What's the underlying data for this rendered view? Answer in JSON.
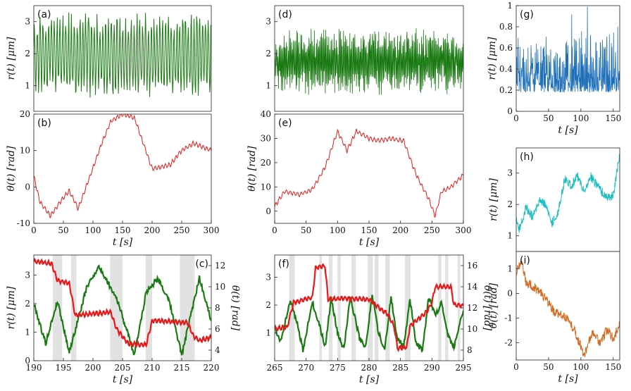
{
  "figure": {
    "colors": {
      "green": "#1a7a12",
      "red": "#e8181a",
      "blue": "#1f70b8",
      "cyan": "#1bbec2",
      "orange": "#d2691e",
      "shade": "#e2e2e2"
    }
  },
  "chart_data": [
    {
      "id": "a",
      "panel_label": "(a)",
      "type": "line",
      "series": [
        {
          "name": "r(t)",
          "color": "green",
          "style": "oscillating",
          "points": 340
        }
      ],
      "xlim": [
        0,
        300
      ],
      "ylim": [
        0.2,
        3.5
      ],
      "yticks": [
        1,
        2,
        3
      ],
      "xticks": [],
      "ylabel": "r(t) [μm]",
      "xlabel": ""
    },
    {
      "id": "b",
      "panel_label": "(b)",
      "type": "line",
      "series": [
        {
          "name": "θ(t)",
          "color": "red",
          "style": "steps",
          "anchors": [
            [
              0,
              3
            ],
            [
              10,
              -4
            ],
            [
              28,
              -8
            ],
            [
              45,
              -4
            ],
            [
              60,
              -1
            ],
            [
              75,
              -6
            ],
            [
              95,
              3
            ],
            [
              115,
              12
            ],
            [
              130,
              18
            ],
            [
              150,
              20
            ],
            [
              170,
              19
            ],
            [
              185,
              12
            ],
            [
              200,
              5
            ],
            [
              230,
              6
            ],
            [
              250,
              10
            ],
            [
              270,
              12
            ],
            [
              300,
              10
            ]
          ]
        }
      ],
      "xlim": [
        0,
        300
      ],
      "ylim": [
        -10,
        20
      ],
      "yticks": [
        -10,
        0,
        10,
        20
      ],
      "xticks": [
        0,
        50,
        100,
        150,
        200,
        250,
        300
      ],
      "ylabel": "θ(t) [rad]",
      "xlabel": "t [s]"
    },
    {
      "id": "c",
      "panel_label": "(c)",
      "type": "line",
      "series": [
        {
          "name": "r(t)",
          "color": "green",
          "style": "cycles",
          "axis": "left",
          "anchors": [
            [
              190,
              2.0
            ],
            [
              192,
              0.6
            ],
            [
              194,
              2.1
            ],
            [
              196,
              0.3
            ],
            [
              199,
              2.6
            ],
            [
              201,
              3.3
            ],
            [
              204,
              2.2
            ],
            [
              207,
              0.2
            ],
            [
              209,
              2.4
            ],
            [
              211,
              2.9
            ],
            [
              213,
              2.0
            ],
            [
              215,
              0.2
            ],
            [
              218,
              2.9
            ],
            [
              220,
              1.4
            ]
          ]
        },
        {
          "name": "θ(t)",
          "color": "red",
          "style": "steps",
          "axis": "right",
          "anchors": [
            [
              190,
              12.4
            ],
            [
              193,
              12.2
            ],
            [
              194,
              10.6
            ],
            [
              196,
              10.3
            ],
            [
              197,
              7.3
            ],
            [
              203,
              7.6
            ],
            [
              204,
              6.0
            ],
            [
              206,
              4.6
            ],
            [
              209,
              4.5
            ],
            [
              210,
              6.8
            ],
            [
              216,
              6.6
            ],
            [
              217,
              5.3
            ],
            [
              218,
              4.9
            ],
            [
              220,
              5.2
            ]
          ]
        }
      ],
      "shaded": [
        [
          193.2,
          194.8
        ],
        [
          196.3,
          197.2
        ],
        [
          202.9,
          205.0
        ],
        [
          208.9,
          210.0
        ],
        [
          214.7,
          217.2
        ]
      ],
      "xlim": [
        190,
        220
      ],
      "ylim": [
        0,
        3.7
      ],
      "yticks": [
        0,
        1,
        2,
        3
      ],
      "y2lim": [
        3,
        13
      ],
      "y2ticks": [
        4,
        6,
        8,
        10,
        12
      ],
      "xticks": [
        190,
        195,
        200,
        205,
        210,
        215,
        220
      ],
      "ylabel": "r(t) [μm]",
      "y2label": "θ(t) [rad]",
      "xlabel": "t [s]"
    },
    {
      "id": "d",
      "panel_label": "(d)",
      "type": "line",
      "series": [
        {
          "name": "r(t)",
          "color": "green",
          "style": "fast",
          "points": 600
        }
      ],
      "xlim": [
        0,
        300
      ],
      "ylim": [
        0.2,
        3.5
      ],
      "yticks": [
        1,
        2,
        3
      ],
      "xticks": [],
      "ylabel": "",
      "xlabel": ""
    },
    {
      "id": "e",
      "panel_label": "(e)",
      "type": "line",
      "series": [
        {
          "name": "θ(t)",
          "color": "red",
          "style": "steps",
          "anchors": [
            [
              0,
              2
            ],
            [
              15,
              8
            ],
            [
              40,
              7
            ],
            [
              60,
              9
            ],
            [
              80,
              18
            ],
            [
              100,
              33
            ],
            [
              115,
              25
            ],
            [
              130,
              33
            ],
            [
              150,
              30
            ],
            [
              165,
              29
            ],
            [
              185,
              30
            ],
            [
              205,
              29
            ],
            [
              225,
              15
            ],
            [
              245,
              5
            ],
            [
              255,
              -2
            ],
            [
              265,
              8
            ],
            [
              280,
              10
            ],
            [
              300,
              15
            ]
          ]
        }
      ],
      "xlim": [
        0,
        300
      ],
      "ylim": [
        -5,
        40
      ],
      "yticks": [
        0,
        10,
        20,
        30,
        40
      ],
      "xticks": [
        0,
        50,
        100,
        150,
        200,
        250,
        300
      ],
      "ylabel": "θ(t) [rad]",
      "xlabel": "t [s]"
    },
    {
      "id": "f",
      "panel_label": "(f)",
      "type": "line",
      "series": [
        {
          "name": "r(t)",
          "color": "green",
          "style": "cycles",
          "axis": "left",
          "anchors": [
            [
              265,
              1.2
            ],
            [
              266,
              0.7
            ],
            [
              267.5,
              2.2
            ],
            [
              268.5,
              1.4
            ],
            [
              269.5,
              0.4
            ],
            [
              271,
              2.1
            ],
            [
              272.2,
              1.2
            ],
            [
              273,
              0.5
            ],
            [
              274,
              2.2
            ],
            [
              275,
              1.0
            ],
            [
              276,
              0.4
            ],
            [
              277,
              2.3
            ],
            [
              278.5,
              0.8
            ],
            [
              279.5,
              0.5
            ],
            [
              280.5,
              2.4
            ],
            [
              281.5,
              1.0
            ],
            [
              282.5,
              0.4
            ],
            [
              283.5,
              2.3
            ],
            [
              284.5,
              0.8
            ],
            [
              285.5,
              0.5
            ],
            [
              286.5,
              2.2
            ],
            [
              287.5,
              0.6
            ],
            [
              288.5,
              0.4
            ],
            [
              289.5,
              2.3
            ],
            [
              290.5,
              1.6
            ],
            [
              291.5,
              2.1
            ],
            [
              292.5,
              1.0
            ],
            [
              293.5,
              0.5
            ],
            [
              295,
              1.8
            ]
          ]
        },
        {
          "name": "θ(t)",
          "color": "red",
          "style": "steps",
          "axis": "right",
          "anchors": [
            [
              265,
              10
            ],
            [
              267,
              10.2
            ],
            [
              268,
              12.5
            ],
            [
              271,
              13
            ],
            [
              271.5,
              15.8
            ],
            [
              273,
              16
            ],
            [
              273.5,
              12.8
            ],
            [
              276,
              12.9
            ],
            [
              280,
              12.8
            ],
            [
              281,
              12.3
            ],
            [
              282,
              11.8
            ],
            [
              283,
              11.4
            ],
            [
              284,
              10.2
            ],
            [
              284.5,
              8.2
            ],
            [
              286,
              8.3
            ],
            [
              286.5,
              10.3
            ],
            [
              289,
              11.5
            ],
            [
              290,
              12.5
            ],
            [
              290.5,
              14
            ],
            [
              293,
              14
            ],
            [
              293.5,
              12.3
            ],
            [
              295,
              12.2
            ]
          ]
        }
      ],
      "shaded": [
        [
          267.3,
          268.2
        ],
        [
          272.1,
          272.5
        ],
        [
          273.6,
          274.2
        ],
        [
          275.0,
          275.5
        ],
        [
          277.2,
          277.9
        ],
        [
          279.8,
          280.6
        ],
        [
          280.9,
          281.5
        ],
        [
          282.6,
          283.3
        ],
        [
          285.7,
          286.6
        ],
        [
          291.0,
          291.5
        ],
        [
          292.1,
          292.6
        ],
        [
          294.1,
          294.5
        ]
      ],
      "xlim": [
        265,
        295
      ],
      "ylim": [
        0,
        3.8
      ],
      "yticks": [
        1,
        2,
        3
      ],
      "y2lim": [
        7,
        17
      ],
      "y2ticks": [
        8,
        10,
        12,
        14,
        16
      ],
      "xticks": [
        265,
        270,
        275,
        280,
        285,
        290,
        295
      ],
      "ylabel": "",
      "y2label": "θ(t) [rad]",
      "xlabel": "t [s]"
    },
    {
      "id": "g",
      "panel_label": "(g)",
      "type": "line",
      "series": [
        {
          "name": "r(t)",
          "color": "blue",
          "style": "noise",
          "points": 420
        }
      ],
      "xlim": [
        0,
        160
      ],
      "ylim": [
        0,
        1
      ],
      "yticks": [
        0,
        0.2,
        0.4,
        0.6,
        0.8,
        1
      ],
      "xticks": [
        0,
        50,
        100,
        150
      ],
      "ylabel": "r(t) [μm]",
      "xlabel": "t [s]"
    },
    {
      "id": "h",
      "panel_label": "(h)",
      "type": "line",
      "series": [
        {
          "name": "r(t)",
          "color": "cyan",
          "style": "walk",
          "anchors": [
            [
              0,
              1.6
            ],
            [
              5,
              1.2
            ],
            [
              15,
              1.9
            ],
            [
              25,
              1.6
            ],
            [
              35,
              2.1
            ],
            [
              45,
              2.0
            ],
            [
              55,
              1.4
            ],
            [
              65,
              1.8
            ],
            [
              75,
              2.8
            ],
            [
              85,
              2.6
            ],
            [
              95,
              2.9
            ],
            [
              105,
              2.4
            ],
            [
              115,
              2.9
            ],
            [
              125,
              2.6
            ],
            [
              140,
              2.2
            ],
            [
              150,
              2.3
            ],
            [
              160,
              3.6
            ]
          ]
        }
      ],
      "xlim": [
        0,
        160
      ],
      "ylim": [
        0.5,
        3.8
      ],
      "yticks": [
        1,
        2,
        3
      ],
      "xticks": [],
      "ylabel": "r(t) [μm]",
      "xlabel": ""
    },
    {
      "id": "i",
      "panel_label": "(i)",
      "type": "line",
      "series": [
        {
          "name": "θ(t)",
          "color": "orange",
          "style": "walk",
          "anchors": [
            [
              0,
              0.8
            ],
            [
              8,
              1.4
            ],
            [
              15,
              0.5
            ],
            [
              30,
              0.2
            ],
            [
              45,
              -0.2
            ],
            [
              60,
              -0.8
            ],
            [
              75,
              -0.9
            ],
            [
              90,
              -1.5
            ],
            [
              105,
              -2.5
            ],
            [
              118,
              -1.6
            ],
            [
              130,
              -2.0
            ],
            [
              140,
              -1.5
            ],
            [
              150,
              -1.8
            ],
            [
              160,
              -1.3
            ]
          ]
        }
      ],
      "xlim": [
        0,
        160
      ],
      "ylim": [
        -2.7,
        1.7
      ],
      "yticks": [
        -2,
        -1,
        0,
        1
      ],
      "xticks": [
        0,
        50,
        100,
        150
      ],
      "ylabel": "θ(t) [rad]",
      "xlabel": "t [s]"
    }
  ]
}
